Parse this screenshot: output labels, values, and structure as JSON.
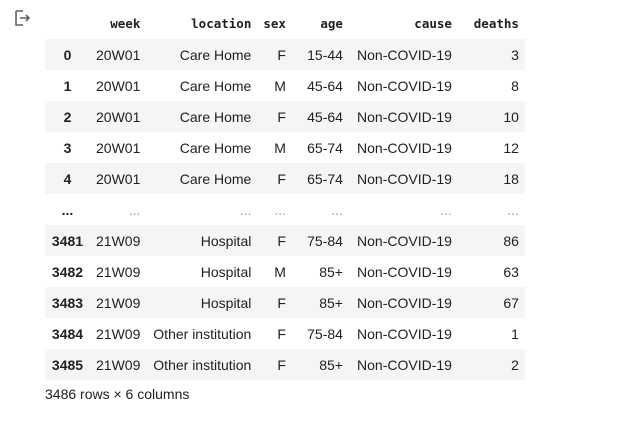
{
  "output_icon": "output-redirect-icon",
  "table": {
    "columns": [
      "week",
      "location",
      "sex",
      "age",
      "cause",
      "deaths"
    ],
    "rows": [
      {
        "index": "0",
        "cells": [
          "20W01",
          "Care Home",
          "F",
          "15-44",
          "Non-COVID-19",
          "3"
        ]
      },
      {
        "index": "1",
        "cells": [
          "20W01",
          "Care Home",
          "M",
          "45-64",
          "Non-COVID-19",
          "8"
        ]
      },
      {
        "index": "2",
        "cells": [
          "20W01",
          "Care Home",
          "F",
          "45-64",
          "Non-COVID-19",
          "10"
        ]
      },
      {
        "index": "3",
        "cells": [
          "20W01",
          "Care Home",
          "M",
          "65-74",
          "Non-COVID-19",
          "12"
        ]
      },
      {
        "index": "4",
        "cells": [
          "20W01",
          "Care Home",
          "F",
          "65-74",
          "Non-COVID-19",
          "18"
        ]
      },
      {
        "index": "...",
        "cells": [
          "...",
          "...",
          "...",
          "...",
          "...",
          "..."
        ],
        "ellipsis": true
      },
      {
        "index": "3481",
        "cells": [
          "21W09",
          "Hospital",
          "F",
          "75-84",
          "Non-COVID-19",
          "86"
        ]
      },
      {
        "index": "3482",
        "cells": [
          "21W09",
          "Hospital",
          "M",
          "85+",
          "Non-COVID-19",
          "63"
        ]
      },
      {
        "index": "3483",
        "cells": [
          "21W09",
          "Hospital",
          "F",
          "85+",
          "Non-COVID-19",
          "67"
        ]
      },
      {
        "index": "3484",
        "cells": [
          "21W09",
          "Other institution",
          "F",
          "75-84",
          "Non-COVID-19",
          "1"
        ]
      },
      {
        "index": "3485",
        "cells": [
          "21W09",
          "Other institution",
          "F",
          "85+",
          "Non-COVID-19",
          "2"
        ]
      }
    ]
  },
  "shape_text": "3486 rows × 6 columns"
}
